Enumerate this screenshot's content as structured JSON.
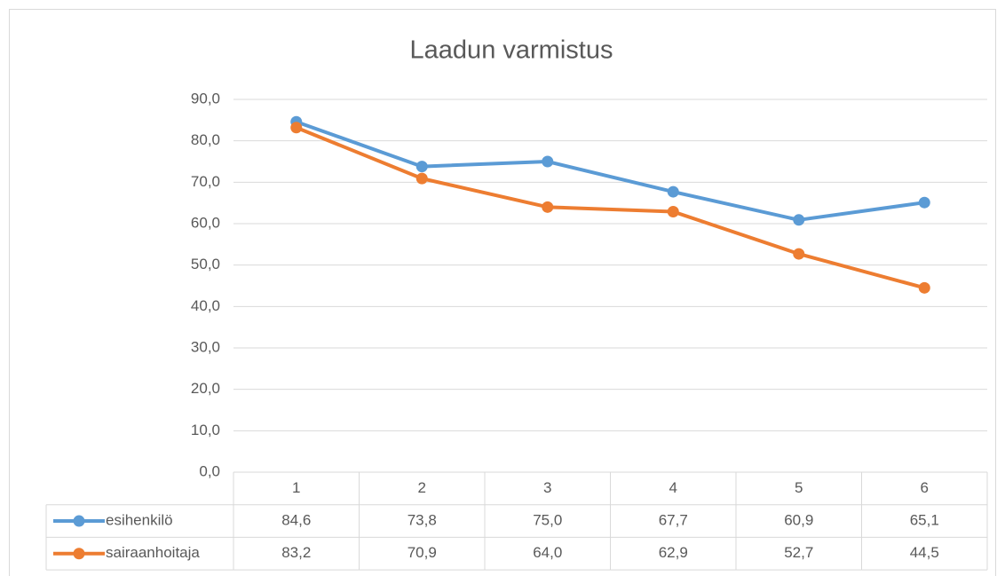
{
  "chart_data": {
    "type": "line",
    "title": "Laadun varmistus",
    "categories": [
      "1",
      "2",
      "3",
      "4",
      "5",
      "6"
    ],
    "series": [
      {
        "name": "esihenkilö",
        "color": "#5b9bd5",
        "values": [
          84.6,
          73.8,
          75.0,
          67.7,
          60.9,
          65.1
        ],
        "value_labels": [
          "84,6",
          "73,8",
          "75,0",
          "67,7",
          "60,9",
          "65,1"
        ]
      },
      {
        "name": "sairaanhoitaja",
        "color": "#ed7d31",
        "values": [
          83.2,
          70.9,
          64.0,
          62.9,
          52.7,
          44.5
        ],
        "value_labels": [
          "83,2",
          "70,9",
          "64,0",
          "62,9",
          "52,7",
          "44,5"
        ]
      }
    ],
    "ylim": [
      0,
      90
    ],
    "yticks": [
      {
        "value": 0,
        "label": "0,0"
      },
      {
        "value": 10,
        "label": "10,0"
      },
      {
        "value": 20,
        "label": "20,0"
      },
      {
        "value": 30,
        "label": "30,0"
      },
      {
        "value": 40,
        "label": "40,0"
      },
      {
        "value": 50,
        "label": "50,0"
      },
      {
        "value": 60,
        "label": "60,0"
      },
      {
        "value": 70,
        "label": "70,0"
      },
      {
        "value": 80,
        "label": "80,0"
      },
      {
        "value": 90,
        "label": "90,0"
      }
    ],
    "grid": true
  }
}
